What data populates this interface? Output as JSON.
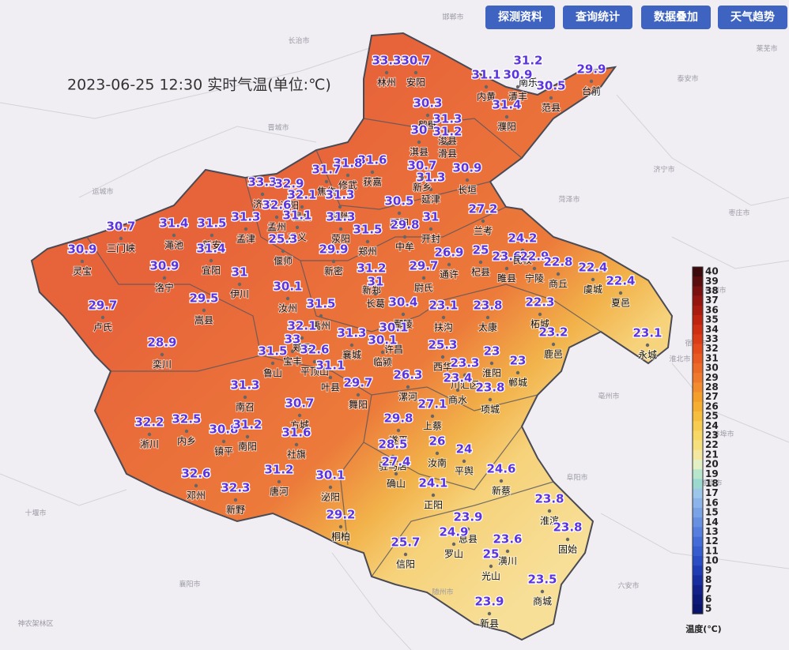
{
  "title": "2023-06-25 12:30 实时气温(单位:℃)",
  "buttons": [
    "探测资料",
    "查询统计",
    "数据叠加",
    "天气趋势"
  ],
  "basemap_labels": [
    "邯郸市",
    "长治市",
    "晋城市",
    "运城市",
    "菏泽市",
    "济宁市",
    "枣庄市",
    "泰安市",
    "莱芜市",
    "徐州市",
    "宿州市",
    "淮北市",
    "亳州市",
    "阜阳市",
    "蚌埠市",
    "淮南市",
    "六安市",
    "随州市",
    "襄阳市",
    "十堰市",
    "神农架林区"
  ],
  "stations": [
    {
      "name": "林州",
      "temp": 33.3
    },
    {
      "name": "安阳",
      "temp": 30.7
    },
    {
      "name": "内黄",
      "temp": 31.1
    },
    {
      "name": "南乐",
      "temp": 31.2
    },
    {
      "name": "清丰",
      "temp": 30.9
    },
    {
      "name": "濮阳",
      "temp": 31.4
    },
    {
      "name": "范县",
      "temp": 30.5
    },
    {
      "name": "台前",
      "temp": 29.9
    },
    {
      "name": "鹤壁",
      "temp": 30.3
    },
    {
      "name": "浚县",
      "temp": 31.3
    },
    {
      "name": "滑县",
      "temp": 31.2
    },
    {
      "name": "淇县",
      "temp": 30
    },
    {
      "name": "长垣",
      "temp": 30.9
    },
    {
      "name": "延津",
      "temp": 31.3
    },
    {
      "name": "新乡",
      "temp": 30.7
    },
    {
      "name": "获嘉",
      "temp": 31.6
    },
    {
      "name": "修武",
      "temp": 31.8
    },
    {
      "name": "焦作",
      "temp": 31.7
    },
    {
      "name": "济源",
      "temp": 33.3
    },
    {
      "name": "沁阳",
      "temp": 32.9
    },
    {
      "name": "温县",
      "temp": 32.1
    },
    {
      "name": "孟州",
      "temp": 32.6
    },
    {
      "name": "武陟",
      "temp": 31.3
    },
    {
      "name": "原阳",
      "temp": 30.5
    },
    {
      "name": "兰考",
      "temp": 27.2
    },
    {
      "name": "开封",
      "temp": 31
    },
    {
      "name": "中牟",
      "temp": 29.8
    },
    {
      "name": "郑州",
      "temp": 31.5
    },
    {
      "name": "荥阳",
      "temp": 31.3
    },
    {
      "name": "巩义",
      "temp": 31.1
    },
    {
      "name": "偃师",
      "temp": 25.3
    },
    {
      "name": "孟津",
      "temp": 31.3
    },
    {
      "name": "新安",
      "temp": 31.5
    },
    {
      "name": "渑池",
      "temp": 31.4
    },
    {
      "name": "三门峡",
      "temp": 30.7
    },
    {
      "name": "灵宝",
      "temp": 30.9
    },
    {
      "name": "宜阳",
      "temp": 31.4
    },
    {
      "name": "洛宁",
      "temp": 30.9
    },
    {
      "name": "伊川",
      "temp": 31
    },
    {
      "name": "嵩县",
      "temp": 29.5
    },
    {
      "name": "卢氏",
      "temp": 29.7
    },
    {
      "name": "新密",
      "temp": 29.9
    },
    {
      "name": "新郑",
      "temp": 31.2
    },
    {
      "name": "尉氏",
      "temp": 29.7
    },
    {
      "name": "通许",
      "temp": 26.9
    },
    {
      "name": "杞县",
      "temp": 25
    },
    {
      "name": "睢县",
      "temp": 23.6
    },
    {
      "name": "民权",
      "temp": 24.2
    },
    {
      "name": "宁陵",
      "temp": 22.9
    },
    {
      "name": "商丘",
      "temp": 22.8
    },
    {
      "name": "虞城",
      "temp": 22.4
    },
    {
      "name": "夏邑",
      "temp": 22.4
    },
    {
      "name": "永城",
      "temp": 23.1
    },
    {
      "name": "柘城",
      "temp": 22.3
    },
    {
      "name": "鹿邑",
      "temp": 23.2
    },
    {
      "name": "汝州",
      "temp": 30.1
    },
    {
      "name": "长葛",
      "temp": 31
    },
    {
      "name": "禹州",
      "temp": 31.5
    },
    {
      "name": "鄢陵",
      "temp": 30.4
    },
    {
      "name": "许昌",
      "temp": 30.1
    },
    {
      "name": "扶沟",
      "temp": 23.1
    },
    {
      "name": "太康",
      "temp": 23.8
    },
    {
      "name": "郏县",
      "temp": 32.1
    },
    {
      "name": "宝丰",
      "temp": 33
    },
    {
      "name": "鲁山",
      "temp": 31.5
    },
    {
      "name": "平顶山",
      "temp": 32.6
    },
    {
      "name": "襄城",
      "temp": 31.3
    },
    {
      "name": "临颍",
      "temp": 30.1
    },
    {
      "name": "叶县",
      "temp": 31.1
    },
    {
      "name": "舞阳",
      "temp": 29.7
    },
    {
      "name": "漯河",
      "temp": 26.3
    },
    {
      "name": "西华",
      "temp": 25.3
    },
    {
      "name": "川汇区",
      "temp": 23.3
    },
    {
      "name": "淮阳",
      "temp": 23
    },
    {
      "name": "郸城",
      "temp": 23
    },
    {
      "name": "商水",
      "temp": 23.4
    },
    {
      "name": "项城",
      "temp": 23.8
    },
    {
      "name": "栾川",
      "temp": 28.9
    },
    {
      "name": "南召",
      "temp": 31.3
    },
    {
      "name": "方城",
      "temp": 30.7
    },
    {
      "name": "内乡",
      "temp": 32.5
    },
    {
      "name": "镇平",
      "temp": 30.8
    },
    {
      "name": "南阳",
      "temp": 31.2
    },
    {
      "name": "社旗",
      "temp": 31.6
    },
    {
      "name": "淅川",
      "temp": 32.2
    },
    {
      "name": "唐河",
      "temp": 31.2
    },
    {
      "name": "邓州",
      "temp": 32.6
    },
    {
      "name": "新野",
      "temp": 32.3
    },
    {
      "name": "泌阳",
      "temp": 30.1
    },
    {
      "name": "桐柏",
      "temp": 29.2
    },
    {
      "name": "遂平",
      "temp": 29.8
    },
    {
      "name": "上蔡",
      "temp": 27.1
    },
    {
      "name": "汝南",
      "temp": 26
    },
    {
      "name": "驻马店",
      "temp": 28.5
    },
    {
      "name": "确山",
      "temp": 27.4
    },
    {
      "name": "平舆",
      "temp": 24
    },
    {
      "name": "新蔡",
      "temp": 24.6
    },
    {
      "name": "正阳",
      "temp": 24.1
    },
    {
      "name": "息县",
      "temp": 23.9
    },
    {
      "name": "淮滨",
      "temp": 23.8
    },
    {
      "name": "固始",
      "temp": 23.8
    },
    {
      "name": "罗山",
      "temp": 24.9
    },
    {
      "name": "潢川",
      "temp": 23.6
    },
    {
      "name": "光山",
      "temp": 25
    },
    {
      "name": "信阳",
      "temp": 25.7
    },
    {
      "name": "商城",
      "temp": 23.5
    },
    {
      "name": "新县",
      "temp": 23.9
    }
  ],
  "legend": {
    "title": "温度(℃)",
    "ticks": [
      40,
      39,
      38,
      37,
      36,
      35,
      34,
      33,
      32,
      31,
      30,
      29,
      28,
      27,
      26,
      25,
      24,
      23,
      22,
      21,
      20,
      19,
      18,
      17,
      16,
      15,
      14,
      13,
      12,
      11,
      10,
      9,
      8,
      7,
      6,
      5
    ],
    "colors": [
      "#3c0a0a",
      "#5a0d0d",
      "#7a1010",
      "#951510",
      "#aa1b10",
      "#bf2410",
      "#cf3014",
      "#db3c18",
      "#e34a1c",
      "#e85a22",
      "#ec6a28",
      "#ef7a2e",
      "#f28c2e",
      "#f49e2c",
      "#f5ae30",
      "#f6be3e",
      "#f7cc52",
      "#f7d866",
      "#f6e07e",
      "#f4e8a0",
      "#e2f0c4",
      "#b8e6cc",
      "#9ad8d0",
      "#9cc6ea",
      "#8cb4ea",
      "#7aa2e6",
      "#6890e2",
      "#567ede",
      "#446cd8",
      "#365ccf",
      "#2a4cc4",
      "#203cb4",
      "#182ea0",
      "#12228a",
      "#0e1a7a",
      "#0a146a"
    ]
  }
}
